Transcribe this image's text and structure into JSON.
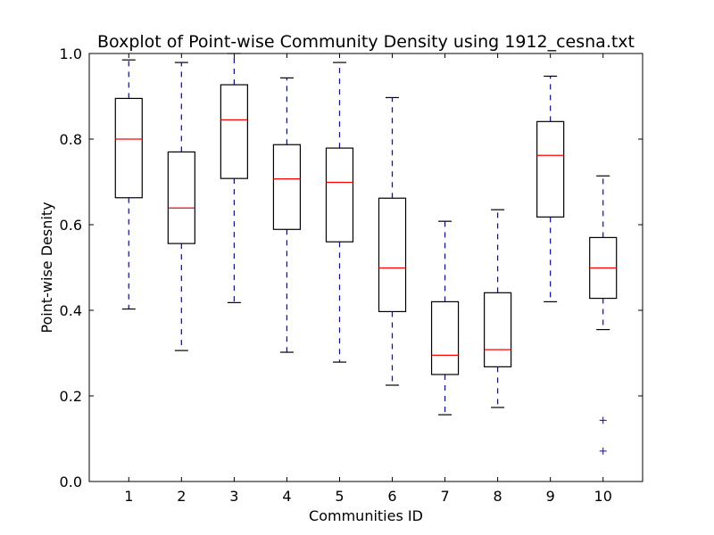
{
  "chart_data": {
    "type": "boxplot",
    "title": "Boxplot of Point-wise Community Density using 1912_cesna.txt",
    "xlabel": "Communities ID",
    "ylabel": "Point-wise Desnity",
    "ylim": [
      0.0,
      1.0
    ],
    "yticks": [
      "0.0",
      "0.2",
      "0.4",
      "0.6",
      "0.8",
      "1.0"
    ],
    "categories": [
      "1",
      "2",
      "3",
      "4",
      "5",
      "6",
      "7",
      "8",
      "9",
      "10"
    ],
    "boxes": [
      {
        "whisker_low": 0.403,
        "q1": 0.663,
        "median": 0.8,
        "q3": 0.895,
        "whisker_high": 0.985,
        "outliers": []
      },
      {
        "whisker_low": 0.306,
        "q1": 0.556,
        "median": 0.639,
        "q3": 0.77,
        "whisker_high": 0.979,
        "outliers": []
      },
      {
        "whisker_low": 0.418,
        "q1": 0.708,
        "median": 0.845,
        "q3": 0.927,
        "whisker_high": 1.0,
        "outliers": []
      },
      {
        "whisker_low": 0.302,
        "q1": 0.589,
        "median": 0.707,
        "q3": 0.787,
        "whisker_high": 0.943,
        "outliers": []
      },
      {
        "whisker_low": 0.279,
        "q1": 0.56,
        "median": 0.699,
        "q3": 0.779,
        "whisker_high": 0.979,
        "outliers": []
      },
      {
        "whisker_low": 0.225,
        "q1": 0.397,
        "median": 0.499,
        "q3": 0.662,
        "whisker_high": 0.897,
        "outliers": []
      },
      {
        "whisker_low": 0.156,
        "q1": 0.25,
        "median": 0.295,
        "q3": 0.42,
        "whisker_high": 0.608,
        "outliers": []
      },
      {
        "whisker_low": 0.173,
        "q1": 0.268,
        "median": 0.308,
        "q3": 0.441,
        "whisker_high": 0.635,
        "outliers": []
      },
      {
        "whisker_low": 0.42,
        "q1": 0.618,
        "median": 0.762,
        "q3": 0.841,
        "whisker_high": 0.947,
        "outliers": []
      },
      {
        "whisker_low": 0.355,
        "q1": 0.428,
        "median": 0.499,
        "q3": 0.57,
        "whisker_high": 0.714,
        "outliers": [
          0.143,
          0.071
        ]
      }
    ],
    "colors": {
      "box": "#000000",
      "median": "#ff0000",
      "whisker": "#0000ff",
      "cap": "#000000",
      "flier": "#0000ff"
    },
    "grid": false,
    "legend": "none"
  }
}
